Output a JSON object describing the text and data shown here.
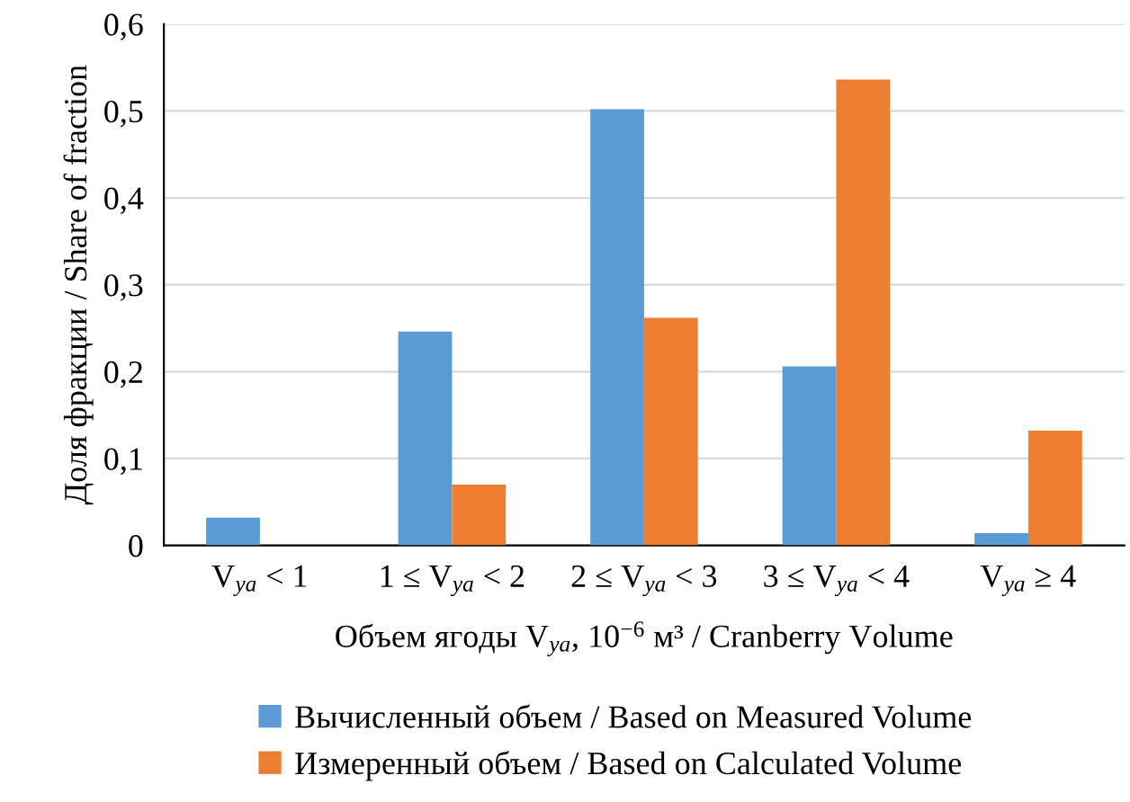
{
  "chart_data": {
    "type": "bar",
    "xlabel": "Объем ягоды V$_{ya}$, 10$^{−6}$ м³ / Cranberry Volume",
    "ylabel": "Доля фракции / Share of fraction",
    "categories": [
      "V$_{ya}$ < 1",
      "1 ≤ V$_{ya}$ < 2",
      "2 ≤ V$_{ya}$ < 3",
      "3 ≤ V$_{ya}$ < 4",
      "V$_{ya}$ ≥ 4"
    ],
    "series": [
      {
        "name": "Вычисленный объем / Based on Measured Volume",
        "color": "#5b9bd5",
        "values": [
          0.032,
          0.246,
          0.502,
          0.206,
          0.014
        ]
      },
      {
        "name": "Измеренный объем / Based on Calculated Volume",
        "color": "#ed7d31",
        "values": [
          0,
          0.07,
          0.262,
          0.536,
          0.132
        ]
      }
    ],
    "ylim": [
      0,
      0.6
    ],
    "yticks": [
      0,
      {
        "value": 0.1,
        "label": "0,1"
      },
      {
        "value": 0.2,
        "label": "0,2"
      },
      {
        "value": 0.3,
        "label": "0,3"
      },
      {
        "value": 0.4,
        "label": "0,4"
      },
      {
        "value": 0.5,
        "label": "0,5"
      },
      {
        "value": 0.6,
        "label": "0,6"
      }
    ],
    "grid": "y",
    "legend": "bottom"
  }
}
